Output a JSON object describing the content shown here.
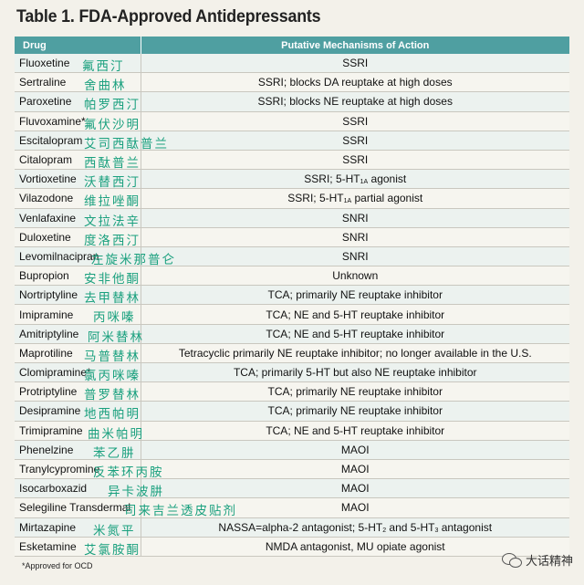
{
  "title": "Table 1. FDA-Approved Antidepressants",
  "headers": {
    "drug": "Drug",
    "mechanism": "Putative Mechanisms of Action"
  },
  "rows": [
    {
      "drug": "Fluoxetine",
      "cn": "氟西汀",
      "mechanism": "SSRI",
      "cn_left": 90
    },
    {
      "drug": "Sertraline",
      "cn": "舍曲林",
      "mechanism": "SSRI; blocks DA reuptake at high doses",
      "cn_left": 92
    },
    {
      "drug": "Paroxetine",
      "cn": "帕罗西汀",
      "mechanism": "SSRI; blocks NE reuptake at high doses",
      "cn_left": 92
    },
    {
      "drug": "Fluvoxamine*",
      "cn": "氟伏沙明",
      "mechanism": "SSRI",
      "cn_left": 92
    },
    {
      "drug": "Escitalopram",
      "cn": "艾司西酞普兰",
      "mechanism": "SSRI",
      "cn_left": 92
    },
    {
      "drug": "Citalopram",
      "cn": "西酞普兰",
      "mechanism": "SSRI",
      "cn_left": 92
    },
    {
      "drug": "Vortioxetine",
      "cn": "沃替西汀",
      "mechanism": "SSRI; 5-HT",
      "mech_sub": "1A",
      "mech_tail": " agonist",
      "cn_left": 92
    },
    {
      "drug": "Vilazodone",
      "cn": "维拉唑酮",
      "mechanism": "SSRI; 5-HT",
      "mech_sub": "1A",
      "mech_tail": " partial agonist",
      "cn_left": 92
    },
    {
      "drug": "Venlafaxine",
      "cn": "文拉法辛",
      "mechanism": "SNRI",
      "cn_left": 92
    },
    {
      "drug": "Duloxetine",
      "cn": "度洛西汀",
      "mechanism": "SNRI",
      "cn_left": 92
    },
    {
      "drug": "Levomilnacipran",
      "cn": "左旋米那普仑",
      "mechanism": "SNRI",
      "cn_left": 100
    },
    {
      "drug": "Bupropion",
      "cn": "安非他酮",
      "mechanism": "Unknown",
      "cn_left": 92
    },
    {
      "drug": "Nortriptyline",
      "cn": "去甲替林",
      "mechanism": "TCA; primarily NE reuptake inhibitor",
      "cn_left": 92
    },
    {
      "drug": "Imipramine",
      "cn": "丙咪嗪",
      "mechanism": "TCA; NE and 5-HT reuptake inhibitor",
      "cn_left": 102
    },
    {
      "drug": "Amitriptyline",
      "cn": "阿米替林",
      "mechanism": "TCA; NE and 5-HT reuptake inhibitor",
      "cn_left": 96
    },
    {
      "drug": "Maprotiline",
      "cn": "马普替林",
      "mechanism": "Tetracyclic primarily NE reuptake inhibitor; no longer available in the U.S.",
      "cn_left": 92
    },
    {
      "drug": "Clomipramine*",
      "cn": "氯丙咪嗪",
      "mechanism": "TCA; primarily 5-HT but also NE reuptake inhibitor",
      "cn_left": 92
    },
    {
      "drug": "Protriptyline",
      "cn": "普罗替林",
      "mechanism": "TCA; primarily NE reuptake inhibitor",
      "cn_left": 92
    },
    {
      "drug": "Desipramine",
      "cn": "地西帕明",
      "mechanism": "TCA; primarily NE reuptake inhibitor",
      "cn_left": 92
    },
    {
      "drug": "Trimipramine",
      "cn": "曲米帕明",
      "mechanism": "TCA; NE and 5-HT reuptake inhibitor",
      "cn_left": 96
    },
    {
      "drug": "Phenelzine",
      "cn": "苯乙肼",
      "mechanism": "MAOI",
      "cn_left": 102
    },
    {
      "drug": "Tranylcypromine",
      "cn": "反苯环丙胺",
      "mechanism": "MAOI",
      "cn_left": 102
    },
    {
      "drug": "Isocarboxazid",
      "cn": "异卡波肼",
      "mechanism": "MAOI",
      "cn_left": 118
    },
    {
      "drug": "Selegiline Transdermal",
      "cn": "司来吉兰透皮贴剂",
      "mechanism": "MAOI",
      "cn_left": 136
    },
    {
      "drug": "Mirtazapine",
      "cn": "米氮平",
      "mechanism": "NASSA=alpha-2 antagonist; 5-HT",
      "mech_sub": "2",
      "mech_tail": " and 5-HT",
      "mech_sub2": "3",
      "mech_tail2": " antagonist",
      "cn_left": 102
    },
    {
      "drug": "Esketamine",
      "cn": "艾氯胺酮",
      "mechanism": "NMDA antagonist, MU opiate agonist",
      "cn_left": 92
    }
  ],
  "footnote": "*Approved for OCD",
  "watermark": {
    "icon": "wechat-icon",
    "text": "大话精神"
  }
}
